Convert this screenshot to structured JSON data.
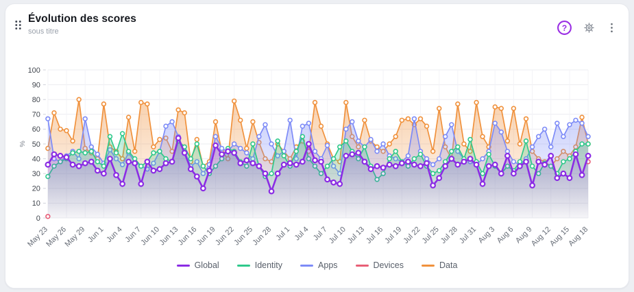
{
  "header": {
    "title": "Évolution des scores",
    "subtitle": "sous titre",
    "help_glyph": "?"
  },
  "icons": {
    "drag_handle": "drag-handle (6 dots)",
    "help": "help-circle",
    "settings": "gear",
    "menu": "kebab-vertical"
  },
  "chart_data": {
    "type": "line",
    "title": "Évolution des scores",
    "xlabel": "",
    "ylabel": "%",
    "ylim": [
      0,
      100
    ],
    "ytick_step": 10,
    "grid": true,
    "x_label_every": 3,
    "legend_position": "bottom",
    "categories": [
      "May 23",
      "May 24",
      "May 25",
      "May 26",
      "May 27",
      "May 28",
      "May 29",
      "May 30",
      "May 31",
      "Jun 1",
      "Jun 2",
      "Jun 3",
      "Jun 4",
      "Jun 5",
      "Jun 6",
      "Jun 7",
      "Jun 8",
      "Jun 9",
      "Jun 10",
      "Jun 11",
      "Jun 12",
      "Jun 13",
      "Jun 14",
      "Jun 15",
      "Jun 16",
      "Jun 17",
      "Jun 18",
      "Jun 19",
      "Jun 20",
      "Jun 21",
      "Jun 22",
      "Jun 23",
      "Jun 24",
      "Jun 25",
      "Jun 26",
      "Jun 27",
      "Jun 28",
      "Jun 29",
      "Jun 30",
      "Jul 1",
      "Jul 2",
      "Jul 3",
      "Jul 4",
      "Jul 5",
      "Jul 6",
      "Jul 7",
      "Jul 8",
      "Jul 9",
      "Jul 10",
      "Jul 11",
      "Jul 12",
      "Jul 13",
      "Jul 14",
      "Jul 15",
      "Jul 16",
      "Jul 17",
      "Jul 18",
      "Jul 19",
      "Jul 20",
      "Jul 21",
      "Jul 22",
      "Jul 23",
      "Jul 24",
      "Jul 25",
      "Jul 26",
      "Jul 27",
      "Jul 28",
      "Jul 29",
      "Jul 30",
      "Jul 31",
      "Aug 1",
      "Aug 2",
      "Aug 3",
      "Aug 4",
      "Aug 5",
      "Aug 6",
      "Aug 7",
      "Aug 8",
      "Aug 9",
      "Aug 10",
      "Aug 11",
      "Aug 12",
      "Aug 13",
      "Aug 14",
      "Aug 15",
      "Aug 16",
      "Aug 17",
      "Aug 18"
    ],
    "series": [
      {
        "name": "Global",
        "color": "#8b2ce4",
        "line_width": 2.6,
        "marker_radius": 3.3,
        "fill_opacity": 0.26,
        "values": [
          36,
          43,
          42,
          41,
          36,
          35,
          37,
          38,
          32,
          30,
          40,
          29,
          23,
          38,
          37,
          23,
          38,
          32,
          33,
          37,
          38,
          54,
          44,
          33,
          28,
          20,
          32,
          49,
          43,
          45,
          44,
          37,
          39,
          37,
          35,
          30,
          18,
          30,
          36,
          37,
          36,
          38,
          50,
          39,
          38,
          26,
          24,
          23,
          42,
          43,
          44,
          38,
          33,
          35,
          34,
          36,
          35,
          37,
          38,
          36,
          35,
          37,
          22,
          27,
          35,
          40,
          36,
          38,
          40,
          36,
          23,
          35,
          36,
          30,
          42,
          30,
          35,
          38,
          22,
          38,
          36,
          42,
          27,
          30,
          27,
          43,
          29,
          42
        ]
      },
      {
        "name": "Identity",
        "color": "#2fc98b",
        "line_width": 1.7,
        "marker_radius": 2.9,
        "fill_opacity": 0.32,
        "values": [
          28,
          35,
          38,
          40,
          44,
          45,
          44,
          45,
          38,
          35,
          55,
          44,
          57,
          45,
          40,
          35,
          38,
          44,
          45,
          40,
          38,
          52,
          48,
          40,
          50,
          35,
          30,
          35,
          40,
          47,
          45,
          38,
          35,
          50,
          35,
          28,
          30,
          52,
          42,
          35,
          45,
          55,
          40,
          35,
          30,
          35,
          40,
          48,
          52,
          45,
          40,
          48,
          35,
          26,
          30,
          40,
          45,
          38,
          35,
          40,
          43,
          35,
          30,
          32,
          38,
          45,
          48,
          40,
          53,
          38,
          30,
          43,
          35,
          30,
          35,
          32,
          38,
          52,
          35,
          30,
          37,
          35,
          30,
          38,
          40,
          45,
          50,
          50
        ]
      },
      {
        "name": "Apps",
        "color": "#7d8bf7",
        "line_width": 1.7,
        "marker_radius": 2.9,
        "fill_opacity": 0.38,
        "values": [
          67,
          40,
          38,
          42,
          45,
          40,
          67,
          48,
          43,
          37,
          46,
          40,
          36,
          44,
          38,
          35,
          33,
          37,
          45,
          62,
          65,
          55,
          45,
          35,
          38,
          30,
          36,
          55,
          47,
          45,
          50,
          47,
          44,
          40,
          55,
          63,
          50,
          42,
          45,
          66,
          40,
          62,
          64,
          45,
          40,
          49,
          35,
          30,
          60,
          65,
          52,
          48,
          53,
          45,
          50,
          42,
          40,
          38,
          42,
          67,
          45,
          40,
          36,
          40,
          55,
          63,
          45,
          40,
          38,
          36,
          40,
          45,
          64,
          58,
          45,
          38,
          36,
          40,
          48,
          55,
          60,
          48,
          64,
          55,
          63,
          66,
          64,
          55
        ]
      },
      {
        "name": "Devices",
        "color": "#e85f76",
        "line_width": 1.7,
        "marker_radius": 2.9,
        "fill_opacity": 0.3,
        "values_sparse": {
          "0": 1,
          "87": 38
        }
      },
      {
        "name": "Data",
        "color": "#f0913c",
        "line_width": 1.7,
        "marker_radius": 2.9,
        "fill_opacity": 0.42,
        "values": [
          47,
          71,
          60,
          59,
          52,
          80,
          47,
          44,
          40,
          77,
          48,
          45,
          40,
          68,
          45,
          78,
          77,
          48,
          53,
          54,
          45,
          73,
          71,
          38,
          53,
          35,
          38,
          65,
          45,
          40,
          79,
          66,
          47,
          65,
          51,
          40,
          38,
          50,
          45,
          40,
          48,
          52,
          45,
          78,
          62,
          50,
          40,
          38,
          78,
          55,
          48,
          66,
          52,
          48,
          45,
          50,
          55,
          66,
          67,
          63,
          67,
          62,
          45,
          74,
          48,
          40,
          77,
          50,
          45,
          78,
          55,
          48,
          75,
          74,
          52,
          74,
          50,
          67,
          45,
          40,
          38,
          35,
          40,
          45,
          42,
          48,
          68,
          50
        ]
      }
    ],
    "draw_order": [
      4,
      2,
      1,
      3,
      0
    ]
  }
}
